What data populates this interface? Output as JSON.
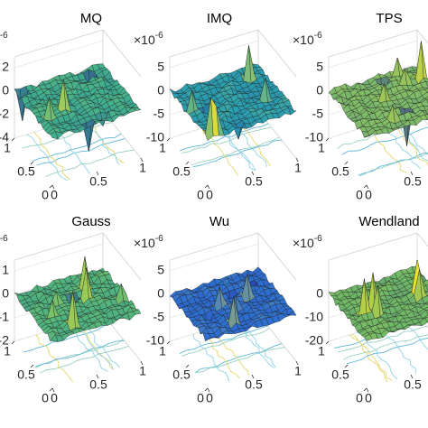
{
  "chart_data": [
    {
      "type": "surface",
      "title": "MQ",
      "multiplier": {
        "base": "×10",
        "power": "-6"
      },
      "zlim": [
        -4,
        2
      ],
      "zticks": [
        -4,
        -2,
        0,
        2
      ],
      "xticks": [
        0,
        0.5,
        1
      ],
      "yticks": [
        0,
        0.5,
        1
      ],
      "color": "#3fae8f"
    },
    {
      "type": "surface",
      "title": "IMQ",
      "multiplier": {
        "base": "×10",
        "power": "-6"
      },
      "zlim": [
        -10,
        5
      ],
      "zticks": [
        -10,
        -5,
        0,
        5
      ],
      "xticks": [
        0,
        0.5,
        1
      ],
      "yticks": [
        0,
        0.5,
        1
      ],
      "color": "#2a9fb0"
    },
    {
      "type": "surface",
      "title": "TPS",
      "multiplier": {
        "base": "×10",
        "power": "-6"
      },
      "zlim": [
        -10,
        5
      ],
      "zticks": [
        -10,
        -5,
        0,
        5
      ],
      "xticks": [
        0,
        0.5,
        1
      ],
      "yticks": [
        0,
        0.5,
        1
      ],
      "color": "#7dba6a"
    },
    {
      "type": "surface",
      "title": "Gauss",
      "multiplier": {
        "base": "×10",
        "power": "-6"
      },
      "zlim": [
        -2,
        1
      ],
      "zticks": [
        -2,
        -1,
        0,
        1
      ],
      "xticks": [
        0,
        0.5,
        1
      ],
      "yticks": [
        0,
        0.5,
        1
      ],
      "color": "#4fb37f"
    },
    {
      "type": "surface",
      "title": "Wu",
      "multiplier": {
        "base": "×10",
        "power": "-6"
      },
      "zlim": [
        -10,
        5
      ],
      "zticks": [
        -10,
        -5,
        0,
        5
      ],
      "xticks": [
        0,
        0.5,
        1
      ],
      "yticks": [
        0,
        0.5,
        1
      ],
      "color": "#2d6fd1"
    },
    {
      "type": "surface",
      "title": "Wendland",
      "multiplier": {
        "base": "×10",
        "power": "-6"
      },
      "zlim": [
        -20,
        10
      ],
      "zticks": [
        -20,
        -10,
        0
      ],
      "xticks": [
        0,
        0.5,
        1
      ],
      "yticks": [
        0,
        0.5,
        1
      ],
      "color": "#6fb868"
    }
  ]
}
